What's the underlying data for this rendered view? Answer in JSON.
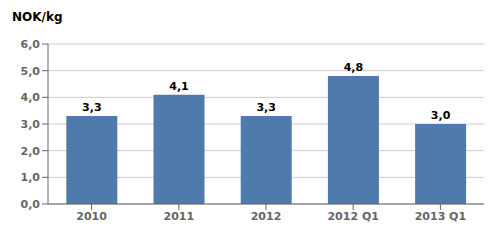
{
  "chart_data": {
    "type": "bar",
    "ylabel": "NOK/kg",
    "categories": [
      "2010",
      "2011",
      "2012",
      "2012 Q1",
      "2013 Q1"
    ],
    "values": [
      3.3,
      4.1,
      3.3,
      4.8,
      3.0
    ],
    "value_labels": [
      "3,3",
      "4,1",
      "3,3",
      "4,8",
      "3,0"
    ],
    "data_labels": true,
    "color": "#4f7bac",
    "ylim": [
      0,
      6.0
    ],
    "yticks": [
      {
        "value": 0.0,
        "label": "0,0"
      },
      {
        "value": 1.0,
        "label": "1,0"
      },
      {
        "value": 2.0,
        "label": "2,0"
      },
      {
        "value": 3.0,
        "label": "3,0"
      },
      {
        "value": 4.0,
        "label": "4,0"
      },
      {
        "value": 5.0,
        "label": "5,0"
      },
      {
        "value": 6.0,
        "label": "6,0"
      }
    ],
    "grid": true
  }
}
